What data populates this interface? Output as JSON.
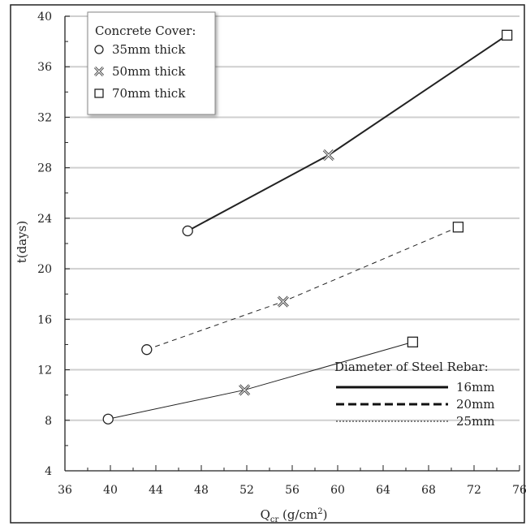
{
  "chart_data": {
    "type": "line",
    "xlabel_main": "Q",
    "xlabel_sub": "cr",
    "xlabel_unit_pre": " (g/cm",
    "xlabel_unit_sup": "2",
    "xlabel_unit_post": ")",
    "ylabel": "t(days)",
    "xlim": [
      36,
      76
    ],
    "ylim": [
      4,
      40
    ],
    "xticks": [
      "36",
      "40",
      "44",
      "48",
      "52",
      "56",
      "60",
      "64",
      "68",
      "72",
      "76"
    ],
    "yticks": [
      "4",
      "8",
      "12",
      "16",
      "20",
      "24",
      "28",
      "32",
      "36",
      "40"
    ],
    "grid": "horizontal",
    "marker_legend": {
      "title": "Concrete Cover:",
      "placement": "top-left",
      "entries": [
        {
          "label": "35mm thick",
          "marker": "circle"
        },
        {
          "label": "50mm thick",
          "marker": "x"
        },
        {
          "label": "70mm thick",
          "marker": "square"
        }
      ]
    },
    "line_legend": {
      "title": "Diameter of Steel Rebar:",
      "placement": "bottom-right",
      "entries": [
        {
          "label": "16mm",
          "style": "solid-thick"
        },
        {
          "label": "20mm",
          "style": "dashed"
        },
        {
          "label": "25mm",
          "style": "dotted-thin"
        }
      ]
    },
    "series": [
      {
        "name": "16mm",
        "style": "solid-thick",
        "points": [
          [
            46.8,
            23.0
          ],
          [
            59.2,
            29.0
          ],
          [
            74.9,
            38.5
          ]
        ],
        "markers": [
          "circle",
          "x",
          "square"
        ]
      },
      {
        "name": "20mm",
        "style": "dashed",
        "points": [
          [
            43.2,
            13.6
          ],
          [
            55.2,
            17.4
          ],
          [
            70.6,
            23.3
          ]
        ],
        "markers": [
          "circle",
          "x",
          "square"
        ]
      },
      {
        "name": "25mm",
        "style": "thin",
        "points": [
          [
            39.8,
            8.1
          ],
          [
            51.8,
            10.4
          ],
          [
            66.6,
            14.2
          ]
        ],
        "markers": [
          "circle",
          "x",
          "square"
        ]
      }
    ]
  }
}
